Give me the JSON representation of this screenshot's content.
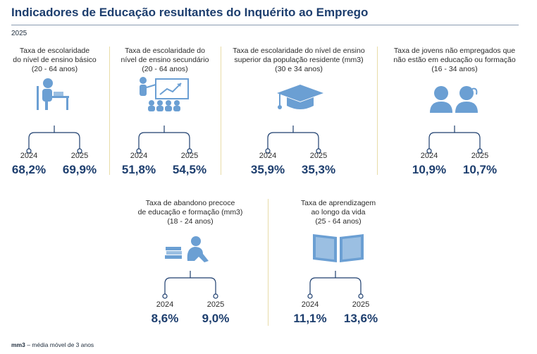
{
  "header": {
    "title": "Indicadores de Educação resultantes do Inquérito ao Emprego",
    "year": "2025"
  },
  "footnote": {
    "abbr": "mm3",
    "text": " – média móvel de 3 anos"
  },
  "chart_data": {
    "type": "table",
    "series_years": [
      "2024",
      "2025"
    ],
    "indicators": [
      {
        "label": [
          "Taxa de escolaridade",
          "do nível de ensino básico",
          "(20 - 64 anos)"
        ],
        "icon": "student-desk-icon",
        "values": [
          "68,2%",
          "69,9%"
        ],
        "numeric": [
          68.2,
          69.9
        ]
      },
      {
        "label": [
          "Taxa de escolaridade do",
          "nível de ensino secundário",
          "(20 - 64 anos)"
        ],
        "icon": "classroom-icon",
        "values": [
          "51,8%",
          "54,5%"
        ],
        "numeric": [
          51.8,
          54.5
        ]
      },
      {
        "label": [
          "Taxa de escolaridade do nível de ensino",
          "superior da população residente (mm3)",
          "(30 e 34 anos)"
        ],
        "icon": "graduation-cap-icon",
        "values": [
          "35,9%",
          "35,3%"
        ],
        "numeric": [
          35.9,
          35.3
        ]
      },
      {
        "label": [
          "Taxa de jovens não empregados que",
          "não estão em educação ou formação",
          "(16 - 34 anos)"
        ],
        "icon": "young-people-icon",
        "values": [
          "10,9%",
          "10,7%"
        ],
        "numeric": [
          10.9,
          10.7
        ]
      },
      {
        "label": [
          "Taxa de abandono precoce",
          "de educação e formação (mm3)",
          "(18 - 24 anos)"
        ],
        "icon": "dropout-books-icon",
        "values": [
          "8,6%",
          "9,0%"
        ],
        "numeric": [
          8.6,
          9.0
        ]
      },
      {
        "label": [
          "Taxa de aprendizagem",
          "ao longo da vida",
          "(25 - 64 anos)"
        ],
        "icon": "open-book-icon",
        "values": [
          "11,1%",
          "13,6%"
        ],
        "numeric": [
          11.1,
          13.6
        ]
      }
    ]
  }
}
